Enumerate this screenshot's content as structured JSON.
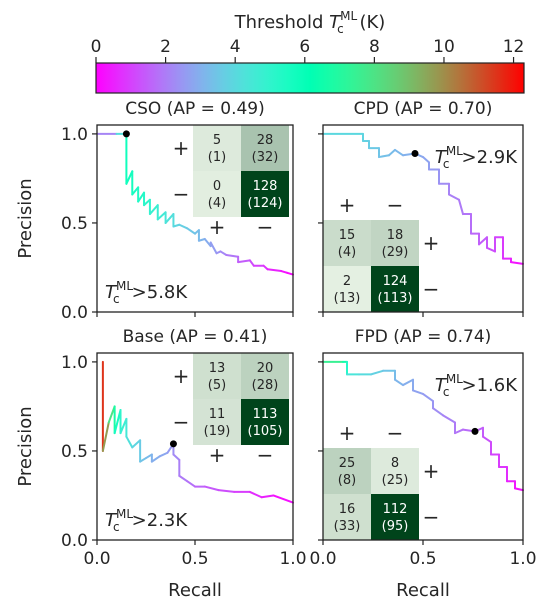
{
  "colorbar": {
    "label_main": "Threshold ",
    "label_T": "T",
    "label_sub": "c",
    "label_sup": "ML",
    "label_unit": " (K)",
    "ticks": [
      "0",
      "2",
      "4",
      "6",
      "8",
      "10",
      "12"
    ],
    "range": [
      0,
      12.3
    ],
    "colormap": "rainbow"
  },
  "chart_data": [
    {
      "type": "line",
      "title": "CSO (AP = 0.49)",
      "xlabel": "",
      "ylabel": "Precision",
      "xlim": [
        0,
        1
      ],
      "ylim": [
        0,
        1.05
      ],
      "xticks": [],
      "yticks": [
        "0.0",
        "0.5",
        "1.0"
      ],
      "threshold_text": {
        "T": "T",
        "sub": "c",
        "sup": "ML",
        "rest": ">5.8K",
        "pos": "bottom-left"
      },
      "marker": [
        0.15,
        1.0
      ],
      "curve": [
        [
          0.0,
          1.0,
          1.8
        ],
        [
          0.1,
          1.0,
          2.5
        ],
        [
          0.15,
          1.0,
          5.8
        ],
        [
          0.15,
          0.72,
          5.8
        ],
        [
          0.18,
          0.79,
          5.7
        ],
        [
          0.18,
          0.66,
          5.6
        ],
        [
          0.21,
          0.7,
          5.5
        ],
        [
          0.21,
          0.62,
          5.4
        ],
        [
          0.24,
          0.67,
          5.3
        ],
        [
          0.24,
          0.6,
          5.2
        ],
        [
          0.27,
          0.63,
          5.0
        ],
        [
          0.27,
          0.55,
          4.9
        ],
        [
          0.31,
          0.6,
          4.8
        ],
        [
          0.31,
          0.52,
          4.6
        ],
        [
          0.35,
          0.56,
          4.5
        ],
        [
          0.35,
          0.5,
          4.3
        ],
        [
          0.39,
          0.55,
          4.2
        ],
        [
          0.39,
          0.48,
          4.0
        ],
        [
          0.42,
          0.49,
          3.8
        ],
        [
          0.46,
          0.47,
          3.6
        ],
        [
          0.5,
          0.44,
          3.4
        ],
        [
          0.52,
          0.46,
          3.3
        ],
        [
          0.52,
          0.4,
          3.2
        ],
        [
          0.55,
          0.41,
          3.0
        ],
        [
          0.58,
          0.37,
          2.8
        ],
        [
          0.58,
          0.39,
          2.7
        ],
        [
          0.61,
          0.33,
          2.5
        ],
        [
          0.63,
          0.34,
          2.3
        ],
        [
          0.66,
          0.32,
          2.1
        ],
        [
          0.72,
          0.31,
          1.7
        ],
        [
          0.72,
          0.28,
          1.6
        ],
        [
          0.78,
          0.29,
          1.3
        ],
        [
          0.8,
          0.26,
          1.1
        ],
        [
          0.85,
          0.26,
          0.9
        ],
        [
          0.87,
          0.24,
          0.7
        ],
        [
          0.94,
          0.23,
          0.4
        ],
        [
          0.97,
          0.22,
          0.2
        ],
        [
          1.0,
          0.21,
          0.1
        ]
      ],
      "confusion": {
        "place": "top-right",
        "cells": [
          [
            "5",
            "(1)"
          ],
          [
            "28",
            "(32)"
          ],
          [
            "0",
            "(4)"
          ],
          [
            "128",
            "(124)"
          ]
        ],
        "shade": [
          0.06,
          0.28,
          0.04,
          1.0
        ],
        "row_signs": [
          "+",
          "−"
        ],
        "col_signs": [
          "+",
          "−"
        ],
        "row_side": "left",
        "col_side": "below"
      }
    },
    {
      "type": "line",
      "title": "CPD (AP = 0.70)",
      "xlabel": "",
      "ylabel": "",
      "xlim": [
        0,
        1
      ],
      "ylim": [
        0,
        1.05
      ],
      "xticks": [],
      "yticks": [],
      "threshold_text": {
        "T": "T",
        "sub": "c",
        "sup": "ML",
        "rest": ">2.9K",
        "pos": "top-right"
      },
      "marker": [
        0.46,
        0.89
      ],
      "curve": [
        [
          0.0,
          1.0,
          4.0
        ],
        [
          0.2,
          1.0,
          3.9
        ],
        [
          0.2,
          0.96,
          3.8
        ],
        [
          0.23,
          0.96,
          3.7
        ],
        [
          0.23,
          0.92,
          3.6
        ],
        [
          0.28,
          0.92,
          3.5
        ],
        [
          0.28,
          0.87,
          3.4
        ],
        [
          0.33,
          0.88,
          3.3
        ],
        [
          0.36,
          0.91,
          3.2
        ],
        [
          0.4,
          0.88,
          3.1
        ],
        [
          0.46,
          0.89,
          2.9
        ],
        [
          0.5,
          0.87,
          2.8
        ],
        [
          0.53,
          0.84,
          2.7
        ],
        [
          0.53,
          0.8,
          2.6
        ],
        [
          0.58,
          0.8,
          2.5
        ],
        [
          0.58,
          0.72,
          2.4
        ],
        [
          0.63,
          0.72,
          2.2
        ],
        [
          0.63,
          0.66,
          2.1
        ],
        [
          0.68,
          0.63,
          2.0
        ],
        [
          0.7,
          0.55,
          1.9
        ],
        [
          0.74,
          0.55,
          1.8
        ],
        [
          0.74,
          0.44,
          1.7
        ],
        [
          0.78,
          0.44,
          1.6
        ],
        [
          0.78,
          0.38,
          1.5
        ],
        [
          0.82,
          0.42,
          1.4
        ],
        [
          0.82,
          0.36,
          1.3
        ],
        [
          0.86,
          0.34,
          1.2
        ],
        [
          0.86,
          0.42,
          1.1
        ],
        [
          0.9,
          0.42,
          1.0
        ],
        [
          0.9,
          0.3,
          0.8
        ],
        [
          0.94,
          0.3,
          0.6
        ],
        [
          0.94,
          0.28,
          0.4
        ],
        [
          1.0,
          0.27,
          0.2
        ]
      ],
      "confusion": {
        "place": "bottom-left",
        "cells": [
          [
            "15",
            "(4)"
          ],
          [
            "18",
            "(29)"
          ],
          [
            "2",
            "(13)"
          ],
          [
            "124",
            "(113)"
          ]
        ],
        "shade": [
          0.14,
          0.18,
          0.03,
          1.0
        ],
        "row_signs": [
          "+",
          "−"
        ],
        "col_signs": [
          "+",
          "−"
        ],
        "row_side": "right",
        "col_side": "above"
      }
    },
    {
      "type": "line",
      "title": "Base (AP = 0.41)",
      "xlabel": "Recall",
      "ylabel": "Precision",
      "xlim": [
        0,
        1
      ],
      "ylim": [
        0,
        1.05
      ],
      "xticks": [
        "0.0",
        "0.5",
        "1.0"
      ],
      "yticks": [
        "0.0",
        "0.5",
        "1.0"
      ],
      "threshold_text": {
        "T": "T",
        "sub": "c",
        "sup": "ML",
        "rest": ">2.3K",
        "pos": "bottom-left"
      },
      "marker": [
        0.39,
        0.54
      ],
      "curve": [
        [
          0.03,
          1.0,
          12.0
        ],
        [
          0.03,
          0.5,
          11.0
        ],
        [
          0.06,
          0.66,
          8.5
        ],
        [
          0.09,
          0.75,
          7.5
        ],
        [
          0.09,
          0.6,
          6.0
        ],
        [
          0.12,
          0.73,
          5.2
        ],
        [
          0.12,
          0.6,
          4.9
        ],
        [
          0.15,
          0.68,
          4.6
        ],
        [
          0.15,
          0.58,
          4.4
        ],
        [
          0.18,
          0.52,
          4.0
        ],
        [
          0.22,
          0.56,
          3.7
        ],
        [
          0.22,
          0.44,
          3.5
        ],
        [
          0.25,
          0.46,
          3.3
        ],
        [
          0.28,
          0.48,
          3.1
        ],
        [
          0.28,
          0.44,
          3.0
        ],
        [
          0.32,
          0.47,
          2.9
        ],
        [
          0.36,
          0.49,
          2.7
        ],
        [
          0.39,
          0.54,
          2.4
        ],
        [
          0.39,
          0.48,
          2.3
        ],
        [
          0.42,
          0.45,
          2.1
        ],
        [
          0.42,
          0.36,
          2.0
        ],
        [
          0.46,
          0.33,
          1.9
        ],
        [
          0.5,
          0.3,
          1.7
        ],
        [
          0.55,
          0.3,
          1.5
        ],
        [
          0.62,
          0.28,
          1.3
        ],
        [
          0.7,
          0.27,
          1.1
        ],
        [
          0.78,
          0.27,
          0.8
        ],
        [
          0.84,
          0.24,
          0.6
        ],
        [
          0.9,
          0.25,
          0.4
        ],
        [
          1.0,
          0.21,
          0.1
        ]
      ],
      "confusion": {
        "place": "top-right",
        "cells": [
          [
            "13",
            "(5)"
          ],
          [
            "20",
            "(28)"
          ],
          [
            "11",
            "(19)"
          ],
          [
            "113",
            "(105)"
          ]
        ],
        "shade": [
          0.12,
          0.2,
          0.1,
          1.0
        ],
        "row_signs": [
          "+",
          "−"
        ],
        "col_signs": [
          "+",
          "−"
        ],
        "row_side": "left",
        "col_side": "below"
      }
    },
    {
      "type": "line",
      "title": "FPD (AP = 0.74)",
      "xlabel": "Recall",
      "ylabel": "",
      "xlim": [
        0,
        1
      ],
      "ylim": [
        0,
        1.05
      ],
      "xticks": [
        "0.0",
        "0.5",
        "1.0"
      ],
      "yticks": [],
      "threshold_text": {
        "T": "T",
        "sub": "c",
        "sup": "ML",
        "rest": ">1.6K",
        "pos": "top-right"
      },
      "marker": [
        0.76,
        0.61
      ],
      "curve": [
        [
          0.0,
          1.0,
          8.0
        ],
        [
          0.1,
          1.0,
          7.0
        ],
        [
          0.12,
          1.0,
          6.0
        ],
        [
          0.12,
          0.93,
          4.5
        ],
        [
          0.18,
          0.93,
          4.2
        ],
        [
          0.24,
          0.93,
          3.9
        ],
        [
          0.3,
          0.95,
          3.6
        ],
        [
          0.36,
          0.95,
          3.3
        ],
        [
          0.36,
          0.9,
          3.2
        ],
        [
          0.4,
          0.87,
          3.0
        ],
        [
          0.45,
          0.9,
          2.9
        ],
        [
          0.45,
          0.84,
          2.8
        ],
        [
          0.5,
          0.82,
          2.6
        ],
        [
          0.55,
          0.78,
          2.5
        ],
        [
          0.55,
          0.74,
          2.4
        ],
        [
          0.6,
          0.7,
          2.2
        ],
        [
          0.66,
          0.66,
          2.0
        ],
        [
          0.66,
          0.6,
          1.9
        ],
        [
          0.7,
          0.62,
          1.8
        ],
        [
          0.76,
          0.61,
          1.6
        ],
        [
          0.8,
          0.63,
          1.5
        ],
        [
          0.8,
          0.58,
          1.4
        ],
        [
          0.84,
          0.55,
          1.2
        ],
        [
          0.84,
          0.48,
          1.1
        ],
        [
          0.88,
          0.48,
          1.0
        ],
        [
          0.88,
          0.41,
          0.9
        ],
        [
          0.92,
          0.41,
          0.8
        ],
        [
          0.92,
          0.33,
          0.6
        ],
        [
          0.96,
          0.33,
          0.4
        ],
        [
          0.96,
          0.29,
          0.3
        ],
        [
          1.0,
          0.28,
          0.2
        ]
      ],
      "confusion": {
        "place": "bottom-left",
        "cells": [
          [
            "25",
            "(8)"
          ],
          [
            "8",
            "(25)"
          ],
          [
            "16",
            "(33)"
          ],
          [
            "112",
            "(95)"
          ]
        ],
        "shade": [
          0.2,
          0.06,
          0.12,
          1.0
        ],
        "row_signs": [
          "+",
          "−"
        ],
        "col_signs": [
          "+",
          "−"
        ],
        "row_side": "right",
        "col_side": "above"
      }
    }
  ]
}
